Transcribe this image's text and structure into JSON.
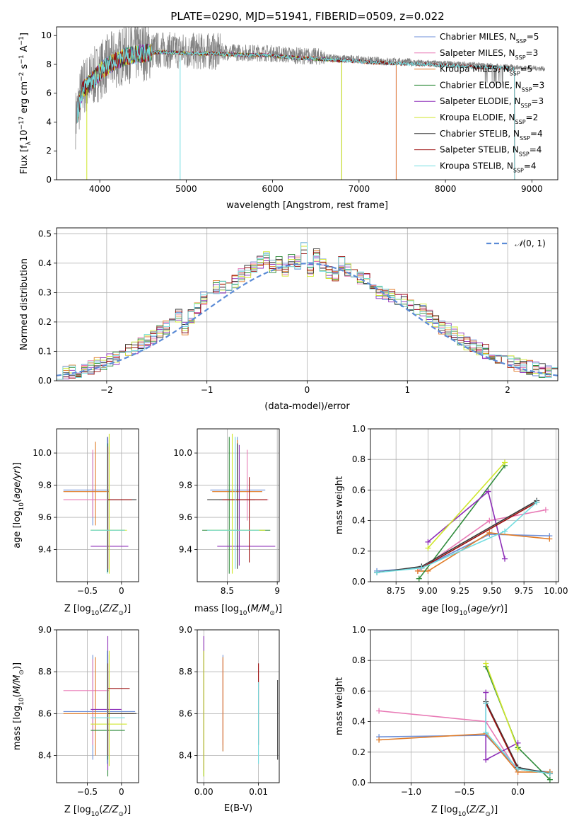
{
  "figure_title": "PLATE=0290, MJD=51941, FIBERID=0509, z=0.022",
  "colors": {
    "Chabrier MILES": "#6d8fd8",
    "Salpeter MILES": "#e879b5",
    "Kroupa MILES": "#e07b27",
    "Chabrier ELODIE": "#2e8b3a",
    "Salpeter ELODIE": "#8e2fb8",
    "Kroupa ELODIE": "#cfe62a",
    "Chabrier STELIB": "#3a3a3a",
    "Salpeter STELIB": "#9c0e0e",
    "Kroupa STELIB": "#72dde0"
  },
  "chart_data": [
    {
      "id": "spectrum",
      "type": "line",
      "title": "PLATE=0290, MJD=51941, FIBERID=0509, z=0.022",
      "xlabel": "wavelength [Angstrom, rest frame]",
      "ylabel": "Flux [f_λ10^-17 erg cm^-2 s^-1 A^-1]",
      "xlim": [
        3500,
        9300
      ],
      "ylim": [
        0,
        10.6
      ],
      "xticks": [
        4000,
        5000,
        6000,
        7000,
        8000,
        9000
      ],
      "yticks": [
        0,
        2,
        4,
        6,
        8,
        10
      ],
      "grid": false,
      "legend_position": "top-right",
      "data_color": "#808080",
      "continuum": {
        "x": [
          3720,
          3800,
          3900,
          4000,
          4100,
          4300,
          4500,
          4700,
          4900,
          5100,
          5300,
          5500,
          5700,
          5900,
          6100,
          6300,
          6500,
          6700,
          6900,
          7100,
          7300,
          7500,
          7700,
          7900,
          8100,
          8300,
          8400,
          8600,
          8800,
          9000,
          9150
        ],
        "y": [
          4.2,
          6.4,
          6.9,
          7.6,
          8.1,
          8.7,
          8.9,
          9.0,
          8.95,
          8.9,
          8.9,
          8.85,
          8.8,
          8.8,
          8.7,
          8.6,
          8.55,
          8.45,
          8.4,
          8.3,
          8.25,
          8.2,
          8.15,
          8.1,
          8.05,
          8.0,
          7.95,
          7.9,
          7.8,
          7.75,
          7.7
        ]
      },
      "series": [
        {
          "name": "Chabrier MILES, N_SSP=5",
          "label": "Chabrier MILES, N",
          "nssp": "=5",
          "end": 7430
        },
        {
          "name": "Salpeter MILES, N_SSP=3",
          "label": "Salpeter MILES, N",
          "nssp": "=3",
          "end": 7430
        },
        {
          "name": "Kroupa MILES, N_SSP=5",
          "label": "Kroupa MILES, N",
          "nssp": "=5",
          "end": 7430
        },
        {
          "name": "Chabrier ELODIE, N_SSP=3",
          "label": "Chabrier ELODIE, N",
          "nssp": "=3",
          "end": 6800
        },
        {
          "name": "Salpeter ELODIE, N_SSP=3",
          "label": "Salpeter ELODIE, N",
          "nssp": "=3",
          "end": 6800
        },
        {
          "name": "Kroupa ELODIE, N_SSP=2",
          "label": "Kroupa ELODIE, N",
          "nssp": "=2",
          "end": 6800
        },
        {
          "name": "Chabrier STELIB, N_SSP=4",
          "label": "Chabrier STELIB, N",
          "nssp": "=4",
          "end": 8800
        },
        {
          "name": "Salpeter STELIB, N_SSP=4",
          "label": "Salpeter STELIB, N",
          "nssp": "=4",
          "end": 8800
        },
        {
          "name": "Kroupa STELIB, N_SSP=4",
          "label": "Kroupa STELIB, N",
          "nssp": "=4",
          "end": 8800
        }
      ],
      "legend_subscript": "SSP"
    },
    {
      "id": "residuals",
      "type": "histogram",
      "xlabel": "(data-model)/error",
      "ylabel": "Normed distribution",
      "xlim": [
        -2.5,
        2.5
      ],
      "ylim": [
        0,
        0.52
      ],
      "xticks": [
        -2,
        -1,
        0,
        1,
        2
      ],
      "yticks": [
        0.0,
        0.1,
        0.2,
        0.3,
        0.4,
        0.5
      ],
      "grid": true,
      "legend_position": "top-right",
      "legend": "N(0,1)",
      "bin_width": 0.1,
      "bin_start": -2.5,
      "base_values": [
        0.02,
        0.025,
        0.03,
        0.035,
        0.04,
        0.045,
        0.055,
        0.06,
        0.07,
        0.08,
        0.09,
        0.1,
        0.11,
        0.125,
        0.135,
        0.15,
        0.165,
        0.18,
        0.2,
        0.22,
        0.18,
        0.22,
        0.25,
        0.28,
        0.3,
        0.32,
        0.32,
        0.33,
        0.34,
        0.36,
        0.37,
        0.38,
        0.4,
        0.42,
        0.39,
        0.4,
        0.38,
        0.41,
        0.4,
        0.45,
        0.38,
        0.43,
        0.39,
        0.37,
        0.36,
        0.4,
        0.38,
        0.36,
        0.35,
        0.35,
        0.33,
        0.3,
        0.3,
        0.29,
        0.27,
        0.27,
        0.26,
        0.25,
        0.24,
        0.22,
        0.2,
        0.18,
        0.17,
        0.16,
        0.14,
        0.13,
        0.12,
        0.11,
        0.1,
        0.09,
        0.08,
        0.07,
        0.06,
        0.055,
        0.05,
        0.045,
        0.04,
        0.035,
        0.03,
        0.025
      ]
    },
    {
      "id": "age_vs_Z",
      "type": "errorbar",
      "xlabel": "Z [log10(Z/Z⊙)]",
      "ylabel": "age [log10(age/yr)]",
      "xlim": [
        -0.95,
        0.25
      ],
      "ylim": [
        9.2,
        10.15
      ],
      "xticks": [
        -0.5,
        0.0
      ],
      "yticks": [
        9.4,
        9.6,
        9.8,
        10.0
      ],
      "grid": true,
      "points": [
        {
          "series": "Chabrier MILES",
          "x": -0.42,
          "y": 9.77,
          "xlo": -0.85,
          "xhi": -0.18,
          "ylo": 9.55,
          "yhi": 10.0
        },
        {
          "series": "Salpeter MILES",
          "x": -0.42,
          "y": 9.71,
          "xlo": -0.85,
          "xhi": -0.18,
          "ylo": 9.6,
          "yhi": 10.02
        },
        {
          "series": "Kroupa MILES",
          "x": -0.38,
          "y": 9.76,
          "xlo": -0.85,
          "xhi": -0.18,
          "ylo": 9.55,
          "yhi": 10.07
        },
        {
          "series": "Chabrier ELODIE",
          "x": -0.2,
          "y": 9.52,
          "xlo": -0.45,
          "xhi": 0.05,
          "ylo": 9.27,
          "yhi": 10.08
        },
        {
          "series": "Salpeter ELODIE",
          "x": -0.2,
          "y": 9.42,
          "xlo": -0.45,
          "xhi": 0.1,
          "ylo": 9.27,
          "yhi": 10.1
        },
        {
          "series": "Kroupa ELODIE",
          "x": -0.18,
          "y": 9.52,
          "xlo": -0.45,
          "xhi": 0.08,
          "ylo": 9.25,
          "yhi": 10.12
        },
        {
          "series": "Chabrier STELIB",
          "x": -0.2,
          "y": 9.71,
          "xlo": -0.2,
          "xhi": 0.22,
          "ylo": 9.26,
          "yhi": 10.06
        },
        {
          "series": "Salpeter STELIB",
          "x": -0.2,
          "y": 9.71,
          "xlo": -0.2,
          "xhi": 0.15,
          "ylo": 9.28,
          "yhi": 10.04
        },
        {
          "series": "Kroupa STELIB",
          "x": -0.21,
          "y": 9.52,
          "xlo": -0.45,
          "xhi": 0.05,
          "ylo": 9.25,
          "yhi": 10.1
        }
      ]
    },
    {
      "id": "age_vs_mass",
      "type": "errorbar",
      "xlabel": "mass [log10(M/M⊙)]",
      "ylabel": "",
      "xlim": [
        8.2,
        9.02
      ],
      "ylim": [
        9.2,
        10.15
      ],
      "xticks": [
        8.5,
        9.0
      ],
      "yticks": [
        9.4,
        9.6,
        9.8,
        10.0
      ],
      "grid": true,
      "points": [
        {
          "series": "Chabrier MILES",
          "x": 8.6,
          "y": 9.77,
          "xlo": 8.33,
          "xhi": 8.88,
          "ylo": 9.55,
          "yhi": 10.1
        },
        {
          "series": "Salpeter MILES",
          "x": 8.7,
          "y": 9.71,
          "xlo": 8.42,
          "xhi": 8.91,
          "ylo": 9.58,
          "yhi": 10.02
        },
        {
          "series": "Kroupa MILES",
          "x": 8.6,
          "y": 9.76,
          "xlo": 8.35,
          "xhi": 8.85,
          "ylo": 9.52,
          "yhi": 10.08
        },
        {
          "series": "Chabrier ELODIE",
          "x": 8.52,
          "y": 9.52,
          "xlo": 8.25,
          "xhi": 8.93,
          "ylo": 9.25,
          "yhi": 10.1
        },
        {
          "series": "Salpeter ELODIE",
          "x": 8.62,
          "y": 9.42,
          "xlo": 8.4,
          "xhi": 8.98,
          "ylo": 9.3,
          "yhi": 10.05
        },
        {
          "series": "Kroupa ELODIE",
          "x": 8.55,
          "y": 9.52,
          "xlo": 8.32,
          "xhi": 8.88,
          "ylo": 9.25,
          "yhi": 10.12
        },
        {
          "series": "Chabrier STELIB",
          "x": 8.6,
          "y": 9.71,
          "xlo": 8.3,
          "xhi": 8.78,
          "ylo": 9.28,
          "yhi": 10.06
        },
        {
          "series": "Salpeter STELIB",
          "x": 8.72,
          "y": 9.71,
          "xlo": 8.45,
          "xhi": 8.9,
          "ylo": 9.32,
          "yhi": 9.85
        },
        {
          "series": "Kroupa STELIB",
          "x": 8.58,
          "y": 9.52,
          "xlo": 8.3,
          "xhi": 8.82,
          "ylo": 9.28,
          "yhi": 10.1
        }
      ]
    },
    {
      "id": "weight_vs_age",
      "type": "line",
      "xlabel": "age [log10(age/yr)]",
      "ylabel": "mass weight",
      "xlim": [
        8.55,
        10.02
      ],
      "ylim": [
        0,
        1
      ],
      "xticks": [
        8.75,
        9.0,
        9.25,
        9.5,
        9.75,
        10.0
      ],
      "xtick_labels": [
        "8.75",
        "9.00",
        "9.25",
        "9.50",
        "9.75",
        "10.00"
      ],
      "yticks": [
        0.0,
        0.2,
        0.4,
        0.6,
        0.8,
        1.0
      ],
      "grid": true,
      "series": [
        {
          "series": "Chabrier MILES",
          "x": [
            8.6,
            8.95,
            9.48,
            9.95
          ],
          "y": [
            0.07,
            0.09,
            0.31,
            0.3
          ]
        },
        {
          "series": "Salpeter MILES",
          "x": [
            8.92,
            9.48,
            9.92
          ],
          "y": [
            0.07,
            0.4,
            0.47
          ]
        },
        {
          "series": "Kroupa MILES",
          "x": [
            8.92,
            9.0,
            9.48,
            9.95
          ],
          "y": [
            0.07,
            0.07,
            0.32,
            0.28
          ]
        },
        {
          "series": "Chabrier ELODIE",
          "x": [
            8.93,
            9.6
          ],
          "y": [
            0.02,
            0.76
          ]
        },
        {
          "series": "Salpeter ELODIE",
          "x": [
            9.0,
            9.47,
            9.6
          ],
          "y": [
            0.26,
            0.59,
            0.15
          ]
        },
        {
          "series": "Kroupa ELODIE",
          "x": [
            9.0,
            9.6
          ],
          "y": [
            0.22,
            0.78
          ]
        },
        {
          "series": "Chabrier STELIB",
          "x": [
            8.6,
            8.95,
            9.85
          ],
          "y": [
            0.06,
            0.1,
            0.53
          ]
        },
        {
          "series": "Salpeter STELIB",
          "x": [
            8.95,
            9.85
          ],
          "y": [
            0.09,
            0.52
          ]
        },
        {
          "series": "Kroupa STELIB",
          "x": [
            8.6,
            8.95,
            9.6,
            9.85
          ],
          "y": [
            0.06,
            0.09,
            0.33,
            0.52
          ]
        }
      ]
    },
    {
      "id": "mass_vs_Z",
      "type": "errorbar",
      "xlabel": "Z [log10(Z/Z⊙)]",
      "ylabel": "mass [log10(M/M⊙)]",
      "xlim": [
        -0.95,
        0.25
      ],
      "ylim": [
        8.27,
        9.0
      ],
      "xticks": [
        -0.5,
        0.0
      ],
      "yticks": [
        8.4,
        8.6,
        8.8,
        9.0
      ],
      "grid": true,
      "points": [
        {
          "series": "Chabrier MILES",
          "x": -0.42,
          "y": 8.61,
          "xlo": -0.85,
          "xhi": 0.2,
          "ylo": 8.38,
          "yhi": 8.88
        },
        {
          "series": "Salpeter MILES",
          "x": -0.42,
          "y": 8.71,
          "xlo": -0.85,
          "xhi": -0.18,
          "ylo": 8.45,
          "yhi": 8.86
        },
        {
          "series": "Kroupa MILES",
          "x": -0.38,
          "y": 8.6,
          "xlo": -0.85,
          "xhi": 0.18,
          "ylo": 8.4,
          "yhi": 8.87
        },
        {
          "series": "Chabrier ELODIE",
          "x": -0.2,
          "y": 8.52,
          "xlo": -0.45,
          "xhi": 0.05,
          "ylo": 8.3,
          "yhi": 8.88
        },
        {
          "series": "Salpeter ELODIE",
          "x": -0.2,
          "y": 8.62,
          "xlo": -0.45,
          "xhi": 0.0,
          "ylo": 8.33,
          "yhi": 8.97
        },
        {
          "series": "Kroupa ELODIE",
          "x": -0.18,
          "y": 8.55,
          "xlo": -0.45,
          "xhi": 0.08,
          "ylo": 8.35,
          "yhi": 8.9
        },
        {
          "series": "Chabrier STELIB",
          "x": -0.2,
          "y": 8.6,
          "xlo": -0.2,
          "xhi": 0.22,
          "ylo": 8.38,
          "yhi": 8.8
        },
        {
          "series": "Salpeter STELIB",
          "x": -0.2,
          "y": 8.72,
          "xlo": -0.2,
          "xhi": 0.12,
          "ylo": 8.4,
          "yhi": 8.84
        },
        {
          "series": "Kroupa STELIB",
          "x": -0.21,
          "y": 8.58,
          "xlo": -0.45,
          "xhi": 0.05,
          "ylo": 8.36,
          "yhi": 8.9
        }
      ]
    },
    {
      "id": "mass_vs_EBV",
      "type": "errorbar",
      "xlabel": "E(B-V)",
      "ylabel": "",
      "xlim": [
        -0.0012,
        0.0138
      ],
      "ylim": [
        8.27,
        9.0
      ],
      "xticks": [
        0.0,
        0.01
      ],
      "xtick_labels": [
        "0.00",
        "0.01"
      ],
      "yticks": [
        8.4,
        8.6,
        8.8,
        9.0
      ],
      "grid": true,
      "points": [
        {
          "series": "Chabrier MILES",
          "x": 0.0035,
          "y": 8.6,
          "ylo": 8.42,
          "yhi": 8.88
        },
        {
          "series": "Salpeter MILES",
          "x": 0.0035,
          "y": 8.7,
          "ylo": 8.45,
          "yhi": 8.86
        },
        {
          "series": "Kroupa MILES",
          "x": 0.0035,
          "y": 8.6,
          "ylo": 8.42,
          "yhi": 8.87
        },
        {
          "series": "Chabrier ELODIE",
          "x": 0.0,
          "y": 8.52,
          "ylo": 8.3,
          "yhi": 8.9
        },
        {
          "series": "Salpeter ELODIE",
          "x": 0.0,
          "y": 8.62,
          "ylo": 8.33,
          "yhi": 8.97
        },
        {
          "series": "Kroupa ELODIE",
          "x": 0.0,
          "y": 8.55,
          "ylo": 8.3,
          "yhi": 8.9
        },
        {
          "series": "Chabrier STELIB",
          "x": 0.0135,
          "y": 8.6,
          "ylo": 8.38,
          "yhi": 8.76
        },
        {
          "series": "Salpeter STELIB",
          "x": 0.01,
          "y": 8.72,
          "ylo": 8.45,
          "yhi": 8.84
        },
        {
          "series": "Kroupa STELIB",
          "x": 0.01,
          "y": 8.58,
          "ylo": 8.36,
          "yhi": 8.75
        }
      ]
    },
    {
      "id": "weight_vs_Z",
      "type": "line",
      "xlabel": "Z [log10(Z/Z⊙)]",
      "ylabel": "mass weight",
      "xlim": [
        -1.38,
        0.38
      ],
      "ylim": [
        0,
        1
      ],
      "xticks": [
        -1.0,
        -0.5,
        0.0
      ],
      "xtick_labels": [
        "−1.0",
        "−0.5",
        "0.0"
      ],
      "yticks": [
        0.0,
        0.2,
        0.4,
        0.6,
        0.8,
        1.0
      ],
      "grid": true,
      "series": [
        {
          "series": "Chabrier MILES",
          "x": [
            -1.3,
            -0.3,
            0.0,
            0.3
          ],
          "y": [
            0.3,
            0.31,
            0.09,
            0.07
          ]
        },
        {
          "series": "Salpeter MILES",
          "x": [
            -1.3,
            -0.3,
            0.0
          ],
          "y": [
            0.47,
            0.4,
            0.07
          ]
        },
        {
          "series": "Kroupa MILES",
          "x": [
            -1.3,
            -0.3,
            0.0,
            0.3
          ],
          "y": [
            0.28,
            0.32,
            0.07,
            0.07
          ]
        },
        {
          "series": "Chabrier ELODIE",
          "x": [
            -0.3,
            0.0,
            0.3
          ],
          "y": [
            0.76,
            0.23,
            0.02
          ]
        },
        {
          "series": "Salpeter ELODIE",
          "x": [
            -0.3,
            -0.3,
            0.0
          ],
          "y": [
            0.59,
            0.15,
            0.26
          ]
        },
        {
          "series": "Kroupa ELODIE",
          "x": [
            -0.3,
            0.0
          ],
          "y": [
            0.78,
            0.22
          ]
        },
        {
          "series": "Chabrier STELIB",
          "x": [
            -0.3,
            0.0,
            0.3
          ],
          "y": [
            0.53,
            0.1,
            0.06
          ]
        },
        {
          "series": "Salpeter STELIB",
          "x": [
            -0.3,
            0.0,
            0.3
          ],
          "y": [
            0.52,
            0.09,
            0.06
          ]
        },
        {
          "series": "Kroupa STELIB",
          "x": [
            -0.3,
            -0.3,
            0.0,
            0.3
          ],
          "y": [
            0.52,
            0.33,
            0.09,
            0.06
          ]
        }
      ]
    }
  ]
}
